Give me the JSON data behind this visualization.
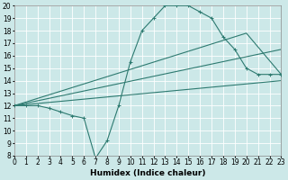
{
  "xlabel": "Humidex (Indice chaleur)",
  "xlim": [
    0,
    23
  ],
  "ylim": [
    8,
    20
  ],
  "xticks": [
    0,
    1,
    2,
    3,
    4,
    5,
    6,
    7,
    8,
    9,
    10,
    11,
    12,
    13,
    14,
    15,
    16,
    17,
    18,
    19,
    20,
    21,
    22,
    23
  ],
  "yticks": [
    8,
    9,
    10,
    11,
    12,
    13,
    14,
    15,
    16,
    17,
    18,
    19,
    20
  ],
  "bg_color": "#cce8e8",
  "line_color": "#2d7a70",
  "grid_color": "#ffffff",
  "line1_x": [
    0,
    1,
    2,
    3,
    4,
    5,
    6,
    7,
    8,
    9,
    10,
    11,
    12,
    13,
    14,
    15,
    16,
    17,
    18,
    19,
    20,
    21,
    22,
    23
  ],
  "line1_y": [
    12,
    12,
    12,
    11.8,
    11.5,
    11.2,
    11,
    7.8,
    9.2,
    12,
    15.5,
    18,
    19,
    20,
    20,
    20,
    19.5,
    19,
    17.5,
    16.5,
    15,
    14.5,
    14.5,
    14.5
  ],
  "line2_x": [
    0,
    20,
    23
  ],
  "line2_y": [
    12,
    17.8,
    14.5
  ],
  "line3_x": [
    0,
    23
  ],
  "line3_y": [
    12,
    16.5
  ],
  "line4_x": [
    0,
    23
  ],
  "line4_y": [
    12,
    14.0
  ],
  "tick_fontsize": 5.5,
  "xlabel_fontsize": 6.5
}
